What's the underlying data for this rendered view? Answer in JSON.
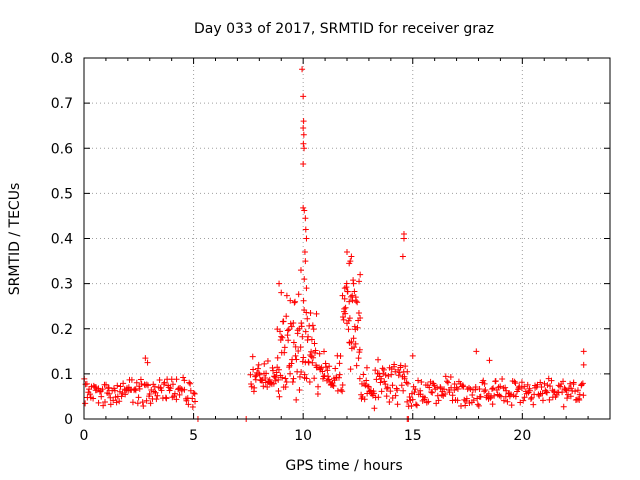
{
  "chart_data": {
    "type": "scatter",
    "title": "Day 033 of 2017, SRMTID for receiver graz",
    "xlabel": "GPS time / hours",
    "ylabel": "SRMTID / TECUs",
    "xlim": [
      0,
      24
    ],
    "ylim": [
      0,
      0.8
    ],
    "x_ticks": [
      0,
      5,
      10,
      15,
      20
    ],
    "x_tick_labels": [
      "0",
      "5",
      "10",
      "15",
      "20"
    ],
    "y_ticks": [
      0,
      0.1,
      0.2,
      0.3,
      0.4,
      0.5,
      0.6,
      0.7,
      0.8
    ],
    "y_tick_labels": [
      "0",
      "0.1",
      "0.2",
      "0.3",
      "0.4",
      "0.5",
      "0.6",
      "0.7",
      "0.8"
    ],
    "grid": true,
    "marker": "+",
    "series_color": "#ff0000",
    "series": [
      {
        "name": "SRMTID",
        "segments": [
          {
            "from": 0.0,
            "to": 5.1,
            "step": 0.04,
            "base": 0.06,
            "spread": 0.035
          },
          {
            "from": 7.6,
            "to": 8.8,
            "step": 0.03,
            "base": 0.1,
            "spread": 0.05
          },
          {
            "from": 8.8,
            "to": 10.6,
            "step": 0.02,
            "base": 0.16,
            "spread": 0.12
          },
          {
            "from": 10.6,
            "to": 11.8,
            "step": 0.03,
            "base": 0.1,
            "spread": 0.06
          },
          {
            "from": 11.8,
            "to": 12.6,
            "step": 0.02,
            "base": 0.22,
            "spread": 0.12
          },
          {
            "from": 12.6,
            "to": 14.8,
            "step": 0.03,
            "base": 0.08,
            "spread": 0.06
          },
          {
            "from": 14.8,
            "to": 22.8,
            "step": 0.04,
            "base": 0.06,
            "spread": 0.04
          }
        ],
        "points": [
          [
            9.95,
            0.775
          ],
          [
            10.0,
            0.715
          ],
          [
            10.02,
            0.66
          ],
          [
            10.0,
            0.645
          ],
          [
            10.03,
            0.63
          ],
          [
            10.01,
            0.61
          ],
          [
            10.04,
            0.6
          ],
          [
            10.0,
            0.565
          ],
          [
            10.0,
            0.468
          ],
          [
            10.05,
            0.462
          ],
          [
            10.1,
            0.445
          ],
          [
            10.12,
            0.42
          ],
          [
            10.15,
            0.4
          ],
          [
            10.08,
            0.37
          ],
          [
            10.1,
            0.35
          ],
          [
            9.9,
            0.33
          ],
          [
            10.05,
            0.31
          ],
          [
            10.15,
            0.29
          ],
          [
            8.9,
            0.3
          ],
          [
            9.0,
            0.28
          ],
          [
            12.0,
            0.37
          ],
          [
            12.2,
            0.36
          ],
          [
            12.15,
            0.35
          ],
          [
            12.1,
            0.345
          ],
          [
            12.6,
            0.32
          ],
          [
            12.55,
            0.305
          ],
          [
            12.3,
            0.3
          ],
          [
            11.9,
            0.29
          ],
          [
            12.4,
            0.27
          ],
          [
            12.1,
            0.26
          ],
          [
            14.6,
            0.41
          ],
          [
            14.6,
            0.4
          ],
          [
            14.55,
            0.36
          ],
          [
            22.8,
            0.15
          ],
          [
            22.8,
            0.12
          ],
          [
            2.8,
            0.135
          ],
          [
            2.9,
            0.125
          ],
          [
            17.9,
            0.15
          ],
          [
            15.0,
            0.14
          ],
          [
            18.5,
            0.13
          ],
          [
            5.2,
            0.0
          ],
          [
            7.4,
            0.0
          ],
          [
            14.75,
            0.0
          ],
          [
            14.8,
            0.0
          ]
        ]
      }
    ]
  }
}
